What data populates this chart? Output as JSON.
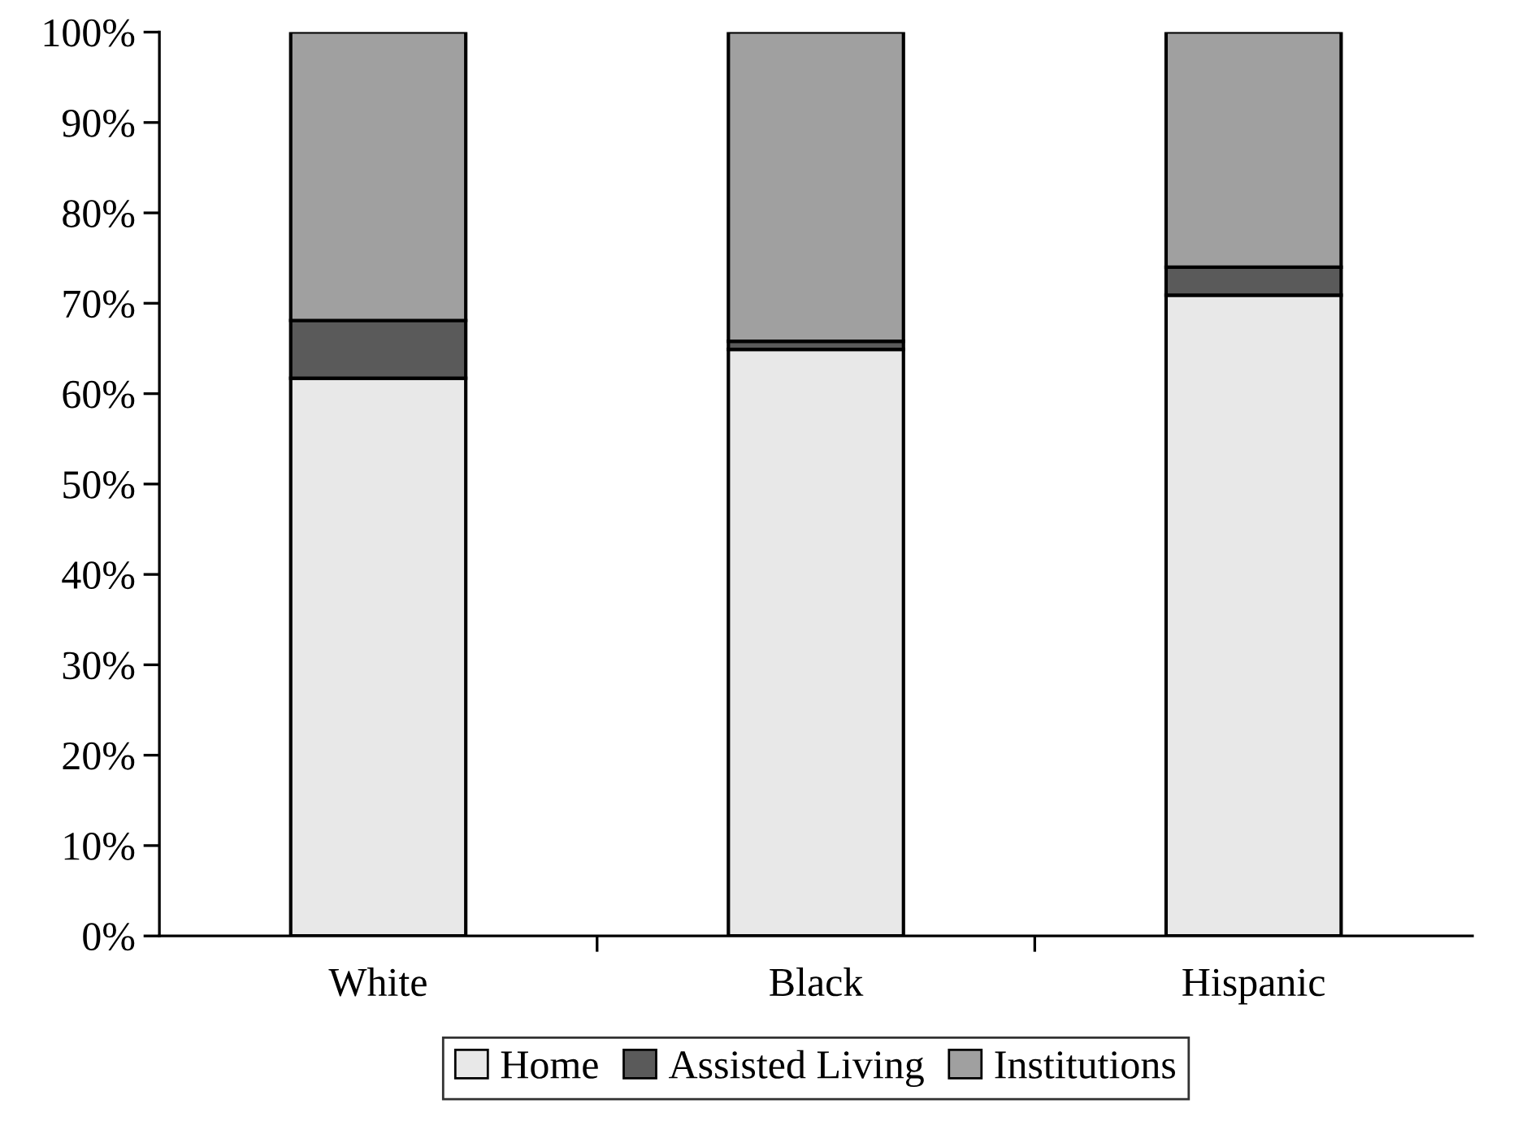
{
  "chart_data": {
    "type": "bar",
    "stacked": true,
    "categories": [
      "White",
      "Black",
      "Hispanic"
    ],
    "series": [
      {
        "name": "Home",
        "color": "#e8e8e8",
        "values": [
          61.7,
          64.9,
          70.9
        ]
      },
      {
        "name": "Assisted Living",
        "color": "#5a5a5a",
        "values": [
          6.4,
          0.9,
          3.1
        ]
      },
      {
        "name": "Institutions",
        "color": "#a0a0a0",
        "values": [
          31.9,
          34.2,
          26.0
        ]
      }
    ],
    "ylim": [
      0,
      100
    ],
    "yticks": [
      {
        "value": 0,
        "label": "0%"
      },
      {
        "value": 10,
        "label": "10%"
      },
      {
        "value": 20,
        "label": "20%"
      },
      {
        "value": 30,
        "label": "30%"
      },
      {
        "value": 40,
        "label": "40%"
      },
      {
        "value": 50,
        "label": "50%"
      },
      {
        "value": 60,
        "label": "60%"
      },
      {
        "value": 70,
        "label": "70%"
      },
      {
        "value": 80,
        "label": "80%"
      },
      {
        "value": 90,
        "label": "90%"
      },
      {
        "value": 100,
        "label": "100%"
      }
    ],
    "grid": false,
    "legend": "bottom"
  }
}
